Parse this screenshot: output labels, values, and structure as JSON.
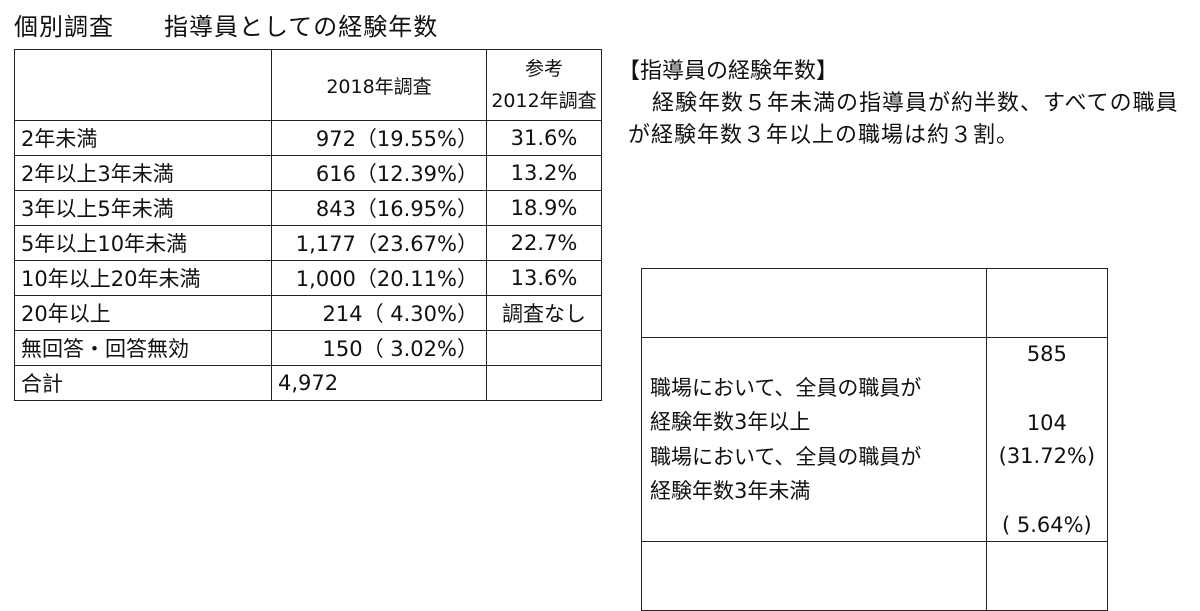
{
  "title": "個別調査　　指導員としての経験年数",
  "main_table": {
    "header": {
      "col2": "2018年調査",
      "col3_line1": "参考",
      "col3_line2": "2012年調査"
    },
    "rows": [
      {
        "label": "2年未満",
        "value_2018": "972（19.55%）",
        "value_2012": "31.6%"
      },
      {
        "label": "2年以上3年未満",
        "value_2018": "616（12.39%）",
        "value_2012": "13.2%"
      },
      {
        "label": "3年以上5年未満",
        "value_2018": "843（16.95%）",
        "value_2012": "18.9%"
      },
      {
        "label": "5年以上10年未満",
        "value_2018": "1,177（23.67%）",
        "value_2012": "22.7%"
      },
      {
        "label": "10年以上20年未満",
        "value_2018": "1,000（20.11%）",
        "value_2012": "13.6%"
      },
      {
        "label": "20年以上",
        "value_2018": "214（ 4.30%）",
        "value_2012": "調査なし"
      },
      {
        "label": "無回答・回答無効",
        "value_2018": "150（ 3.02%）",
        "value_2012": ""
      },
      {
        "label": "合計",
        "value_2018": "4,972",
        "value_2012": ""
      }
    ]
  },
  "summary": {
    "heading": "【指導員の経験年数】",
    "text": "経験年数５年未満の指導員が約半数、すべての職員が経験年数３年以上の職場は約３割。"
  },
  "side_tables": [
    {
      "label_line1": "職場において、全員の職員が",
      "label_line2": "経験年数3年以上",
      "value_line1": "585",
      "value_line2": "(31.72%)"
    },
    {
      "label_line1": "職場において、全員の職員が",
      "label_line2": "経験年数3年未満",
      "value_line1": "104",
      "value_line2": "( 5.64%)"
    }
  ]
}
